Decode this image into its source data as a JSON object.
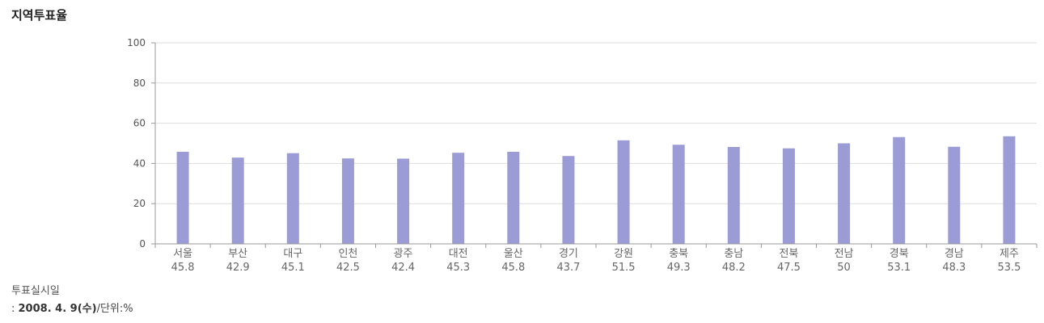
{
  "title": "지역투표율",
  "footer": {
    "label": "투표실시일",
    "prefix": ": ",
    "date": "2008. 4. 9(수)",
    "unit": "/단위:%"
  },
  "chart_data": {
    "type": "bar",
    "categories": [
      "서울",
      "부산",
      "대구",
      "인천",
      "광주",
      "대전",
      "울산",
      "경기",
      "강원",
      "충북",
      "충남",
      "전북",
      "전남",
      "경북",
      "경남",
      "제주"
    ],
    "values": [
      45.8,
      42.9,
      45.1,
      42.5,
      42.4,
      45.3,
      45.8,
      43.7,
      51.5,
      49.3,
      48.2,
      47.5,
      50,
      53.1,
      48.3,
      53.5
    ],
    "value_labels": [
      "45.8",
      "42.9",
      "45.1",
      "42.5",
      "42.4",
      "45.3",
      "45.8",
      "43.7",
      "51.5",
      "49.3",
      "48.2",
      "47.5",
      "50",
      "53.1",
      "48.3",
      "53.5"
    ],
    "ylim": [
      0,
      100
    ],
    "yticks": [
      "0",
      "20",
      "40",
      "60",
      "80",
      "100"
    ],
    "grid": true,
    "bar_color": "#9b9bd6"
  }
}
